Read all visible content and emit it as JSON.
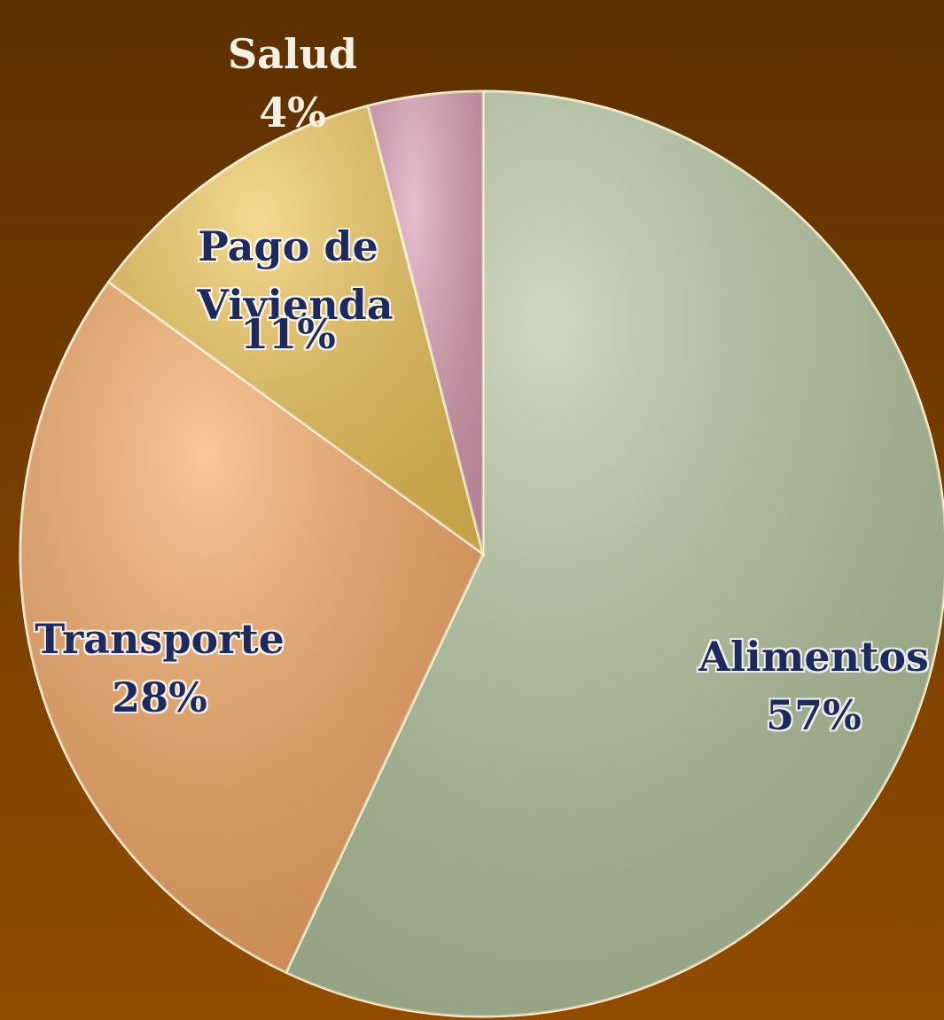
{
  "chart_data": {
    "type": "pie",
    "categories": [
      "Alimentos",
      "Transporte",
      "Pago de Vivienda",
      "Salud"
    ],
    "values": [
      57,
      28,
      11,
      4
    ],
    "value_labels": [
      "57%",
      "28%",
      "11%",
      "4%"
    ],
    "colors": [
      "#b3c59e",
      "#f6a862",
      "#f0c656",
      "#dc9db4"
    ]
  }
}
